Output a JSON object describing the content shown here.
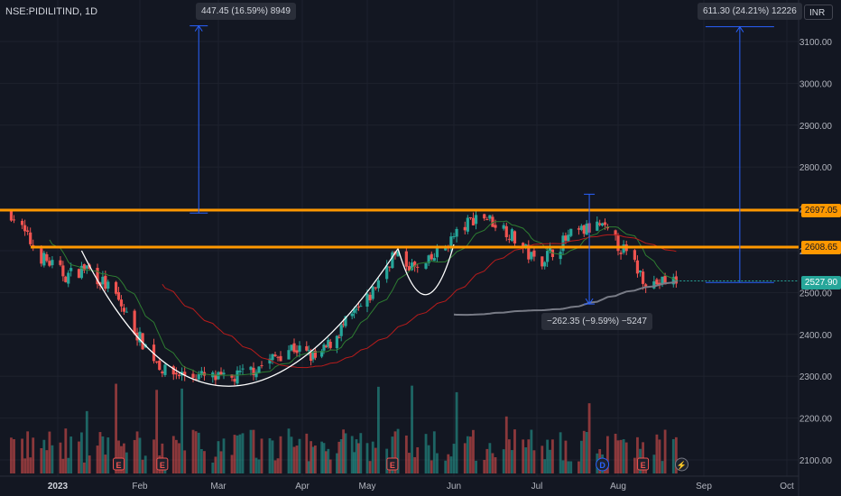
{
  "header": {
    "symbol": "NSE:PIDILITIND, 1D"
  },
  "currency": "INR",
  "colors": {
    "up": "#26a69a",
    "down": "#ef5350",
    "level": "#ff9800",
    "bg": "#131722",
    "measure": "#2962ff",
    "current": "#26a69a"
  },
  "callouts": {
    "left": "447.45 (16.59%) 8949",
    "right": "611.30 (24.21%) 12226",
    "middle": "−262.35 (−9.59%) −5247"
  },
  "levels": {
    "upper": "2697.05",
    "lower": "2608.65",
    "current": "2527.90"
  },
  "event_markers": [
    "E",
    "E",
    "E",
    "D",
    "E",
    "⚡"
  ],
  "chart_data": {
    "type": "candlestick",
    "title": "NSE:PIDILITIND, 1D",
    "x_ticks": [
      "2023",
      "Feb",
      "Mar",
      "Apr",
      "May",
      "Jun",
      "Jul",
      "Aug",
      "Sep",
      "Oct"
    ],
    "y_ticks": [
      2100,
      2200,
      2300,
      2400,
      2500,
      2600,
      2700,
      2800,
      2900,
      3000,
      3100
    ],
    "ylim": [
      2070,
      3150
    ],
    "price_path": [
      {
        "date": "2022-12-15",
        "price": 2690
      },
      {
        "date": "2022-12-25",
        "price": 2590
      },
      {
        "date": "2023-01-04",
        "price": 2540
      },
      {
        "date": "2023-01-12",
        "price": 2560
      },
      {
        "date": "2023-01-22",
        "price": 2500
      },
      {
        "date": "2023-02-01",
        "price": 2390
      },
      {
        "date": "2023-02-10",
        "price": 2310
      },
      {
        "date": "2023-02-22",
        "price": 2300
      },
      {
        "date": "2023-03-05",
        "price": 2290
      },
      {
        "date": "2023-03-18",
        "price": 2330
      },
      {
        "date": "2023-03-28",
        "price": 2370
      },
      {
        "date": "2023-04-08",
        "price": 2340
      },
      {
        "date": "2023-04-20",
        "price": 2420
      },
      {
        "date": "2023-05-01",
        "price": 2480
      },
      {
        "date": "2023-05-10",
        "price": 2590
      },
      {
        "date": "2023-05-20",
        "price": 2550
      },
      {
        "date": "2023-05-30",
        "price": 2620
      },
      {
        "date": "2023-06-10",
        "price": 2690
      },
      {
        "date": "2023-06-20",
        "price": 2650
      },
      {
        "date": "2023-07-01",
        "price": 2570
      },
      {
        "date": "2023-07-15",
        "price": 2640
      },
      {
        "date": "2023-07-25",
        "price": 2660
      },
      {
        "date": "2023-08-03",
        "price": 2600
      },
      {
        "date": "2023-08-12",
        "price": 2520
      },
      {
        "date": "2023-08-22",
        "price": 2527.9
      }
    ],
    "horizontal_levels": [
      2697.05,
      2608.65
    ],
    "current_price": 2527.9,
    "measurements": [
      {
        "label": "447.45 (16.59%) 8949",
        "from": 2690,
        "to": 3137.45
      },
      {
        "label": "611.30 (24.21%) 12226",
        "from": 2524,
        "to": 3135.3
      },
      {
        "label": "−262.35 (−9.59%) −5247",
        "from": 2735,
        "to": 2472.65
      }
    ],
    "patterns": [
      "cup",
      "handle"
    ]
  }
}
